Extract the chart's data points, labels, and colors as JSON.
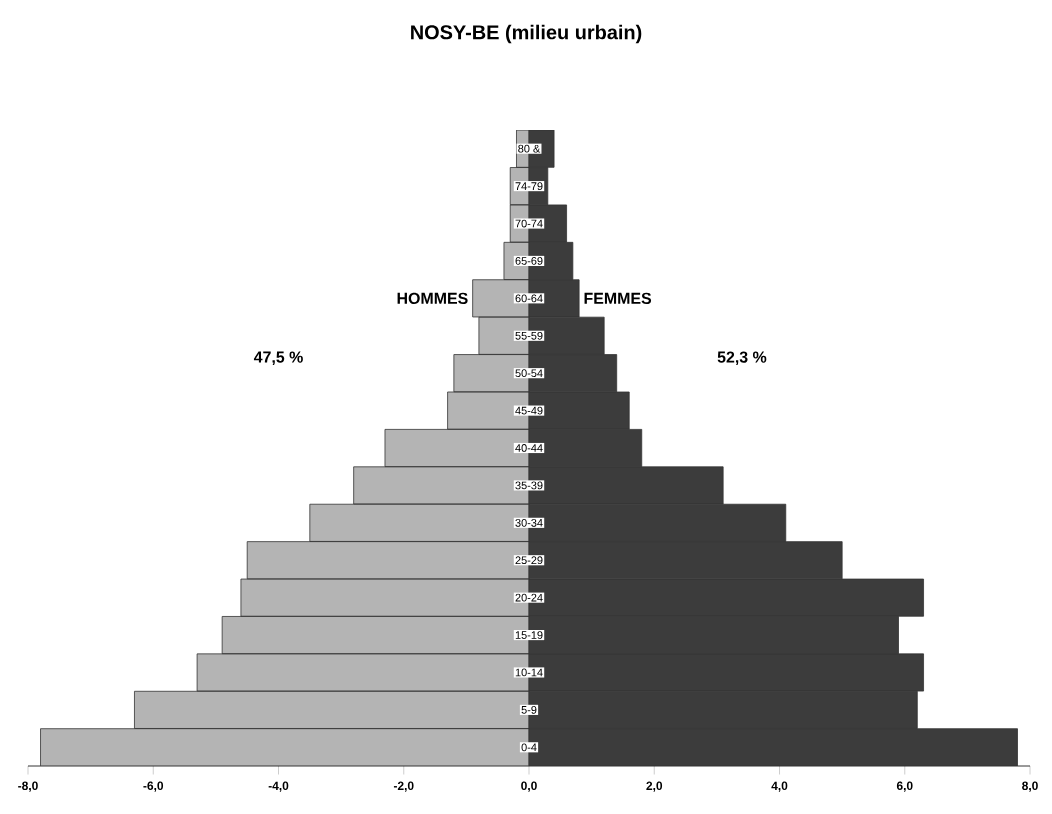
{
  "chart_data": {
    "type": "bar",
    "orientation": "horizontal",
    "title": "NOSY-BE (milieu urbain)",
    "categories": [
      "80 &",
      "74-79",
      "70-74",
      "65-69",
      "60-64",
      "55-59",
      "50-54",
      "45-49",
      "40-44",
      "35-39",
      "30-34",
      "25-29",
      "20-24",
      "15-19",
      "10-14",
      "5-9",
      "0-4"
    ],
    "series": [
      {
        "name": "HOMMES",
        "color": "#b4b4b4",
        "values": [
          -0.2,
          -0.3,
          -0.3,
          -0.4,
          -0.9,
          -0.8,
          -1.2,
          -1.3,
          -2.3,
          -2.8,
          -3.5,
          -4.5,
          -4.6,
          -4.9,
          -5.3,
          -6.3,
          -7.8
        ]
      },
      {
        "name": "FEMMES",
        "color": "#3c3c3c",
        "values": [
          0.4,
          0.3,
          0.6,
          0.7,
          0.8,
          1.2,
          1.4,
          1.6,
          1.8,
          3.1,
          4.1,
          5.0,
          6.3,
          5.9,
          6.3,
          6.2,
          7.8
        ]
      }
    ],
    "annotations": [
      "47,5 %",
      "52,3 %"
    ],
    "xlim": [
      -8,
      8
    ],
    "xticks": [
      {
        "value": -8,
        "label": "-8,0"
      },
      {
        "value": -6,
        "label": "-6,0"
      },
      {
        "value": -4,
        "label": "-4,0"
      },
      {
        "value": -2,
        "label": "-2,0"
      },
      {
        "value": 0,
        "label": "0,0"
      },
      {
        "value": 2,
        "label": "2,0"
      },
      {
        "value": 4,
        "label": "4,0"
      },
      {
        "value": 6,
        "label": "6,0"
      },
      {
        "value": 8,
        "label": "8,0"
      }
    ],
    "stacked": true,
    "legend": false
  }
}
